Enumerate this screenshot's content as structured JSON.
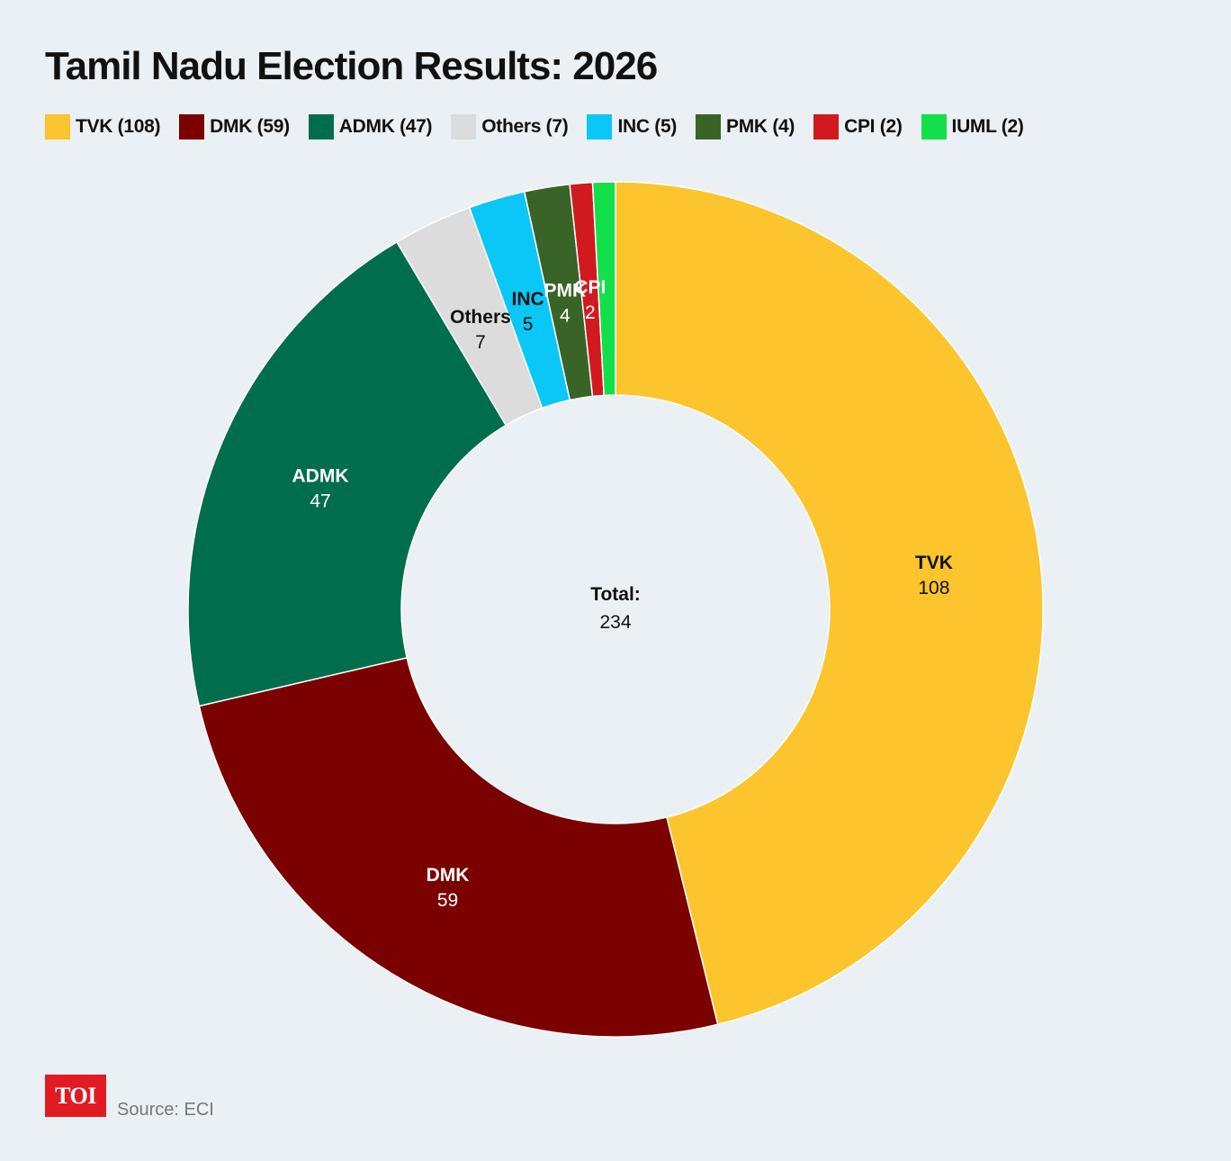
{
  "chart_data": {
    "type": "pie",
    "variant": "donut",
    "title": "Tamil Nadu Election Results: 2026",
    "categories": [
      "TVK",
      "DMK",
      "ADMK",
      "Others",
      "INC",
      "PMK",
      "CPI",
      "IUML"
    ],
    "values": [
      108,
      59,
      47,
      7,
      5,
      4,
      2,
      2
    ],
    "colors": [
      "#fcc42d",
      "#7b0000",
      "#006e4c",
      "#dcdcdc",
      "#0ac7f7",
      "#386428",
      "#d11a1f",
      "#12e04a"
    ],
    "legend_labels": [
      "TVK (108)",
      "DMK (59)",
      "ADMK (47)",
      "Others (7)",
      "INC (5)",
      "PMK (4)",
      "CPI (2)",
      "IUML (2)"
    ],
    "slice_labels": [
      {
        "name": "TVK",
        "value": "108",
        "text_color": "#111111"
      },
      {
        "name": "DMK",
        "value": "59",
        "text_color": "#ffffff"
      },
      {
        "name": "ADMK",
        "value": "47",
        "text_color": "#ffffff"
      },
      {
        "name": "Others",
        "value": "7",
        "text_color": "#111111"
      },
      {
        "name": "INC",
        "value": "5",
        "text_color": "#111111"
      },
      {
        "name": "PMK",
        "value": "4",
        "text_color": "#ffffff"
      },
      {
        "name": "CPI",
        "value": "2",
        "text_color": "#ffffff"
      },
      {
        "name": "IUML",
        "value": "",
        "text_color": "#111111"
      }
    ],
    "center_label": "Total:",
    "center_value": "234",
    "legend_placement": "top-left"
  },
  "footer": {
    "logo_text": "TOI",
    "source": "Source: ECI"
  }
}
